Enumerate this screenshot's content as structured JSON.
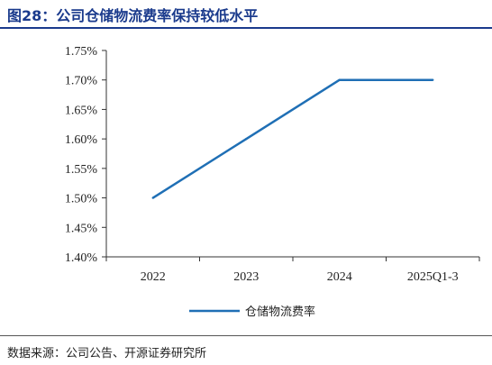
{
  "header": {
    "title": "图28：公司仓储物流费率保持较低水平"
  },
  "footer": {
    "source": "数据来源：公司公告、开源证券研究所"
  },
  "chart_data": {
    "type": "line",
    "categories": [
      "2022",
      "2023",
      "2024",
      "2025Q1-3"
    ],
    "series": [
      {
        "name": "仓储物流费率",
        "values": [
          1.5,
          1.6,
          1.7,
          1.7
        ],
        "color": "#1f6fb5"
      }
    ],
    "ylim": [
      1.4,
      1.75
    ],
    "yticks": [
      "1.40%",
      "1.45%",
      "1.50%",
      "1.55%",
      "1.60%",
      "1.65%",
      "1.70%",
      "1.75%"
    ],
    "grid": false,
    "legend_position": "bottom"
  }
}
